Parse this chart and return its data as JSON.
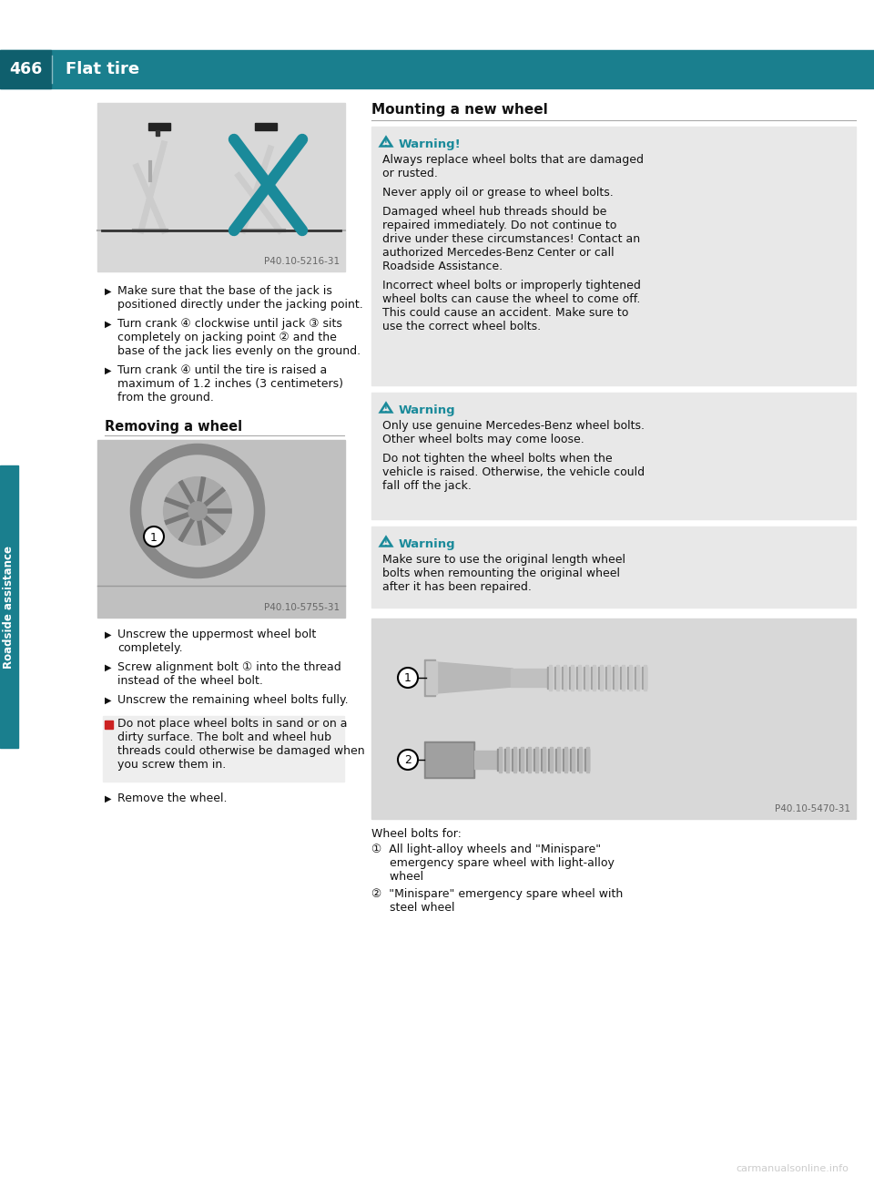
{
  "page_number": "466",
  "header_title": "Flat tire",
  "header_bg_color": "#1a7f8e",
  "header_dark_sq_color": "#0f5f6d",
  "sidebar_color": "#1a7f8e",
  "page_bg": "#ffffff",
  "top_image_caption": "P40.10-5216-31",
  "left_bullets_top": [
    "Make sure that the base of the jack is\npositioned directly under the jacking point.",
    "Turn crank ④ clockwise until jack ③ sits\ncompletely on jacking point ② and the\nbase of the jack lies evenly on the ground.",
    "Turn crank ④ until the tire is raised a\nmaximum of 1.2 inches (3 centimeters)\nfrom the ground."
  ],
  "section2_title": "Removing a wheel",
  "bottom_image_caption": "P40.10-5755-31",
  "left_bullets2": [
    "Unscrew the uppermost wheel bolt\ncompletely.",
    "Screw alignment bolt ① into the thread\ninstead of the wheel bolt.",
    "Unscrew the remaining wheel bolts fully."
  ],
  "note_text": "Do not place wheel bolts in sand or on a\ndirty surface. The bolt and wheel hub\nthreads could otherwise be damaged when\nyou screw them in.",
  "left_bullet3": "Remove the wheel.",
  "right_section_title": "Mounting a new wheel",
  "warning1_title": "Warning!",
  "warning1_paras": [
    "Always replace wheel bolts that are damaged\nor rusted.",
    "Never apply oil or grease to wheel bolts.",
    "Damaged wheel hub threads should be\nrepaired immediately. Do not continue to\ndrive under these circumstances! Contact an\nauthorized Mercedes-Benz Center or call\nRoadside Assistance.",
    "Incorrect wheel bolts or improperly tightened\nwheel bolts can cause the wheel to come off.\nThis could cause an accident. Make sure to\nuse the correct wheel bolts."
  ],
  "warning2_title": "Warning",
  "warning2_paras": [
    "Only use genuine Mercedes-Benz wheel bolts.\nOther wheel bolts may come loose.",
    "Do not tighten the wheel bolts when the\nvehicle is raised. Otherwise, the vehicle could\nfall off the jack."
  ],
  "warning3_title": "Warning",
  "warning3_paras": [
    "Make sure to use the original length wheel\nbolts when remounting the original wheel\nafter it has been repaired."
  ],
  "bolt_image_caption": "P40.10-5470-31",
  "wheel_bolts_label": "Wheel bolts for:",
  "bolt_item1_line1": "①  All light-alloy wheels and \"Minispare\"",
  "bolt_item1_line2": "     emergency spare wheel with light-alloy",
  "bolt_item1_line3": "     wheel",
  "bolt_item2_line1": "②  \"Minispare\" emergency spare wheel with",
  "bolt_item2_line2": "     steel wheel",
  "teal_color": "#1a8a9a",
  "warning_bg": "#e8e8e8",
  "watermark": "carmanualsonline.info"
}
